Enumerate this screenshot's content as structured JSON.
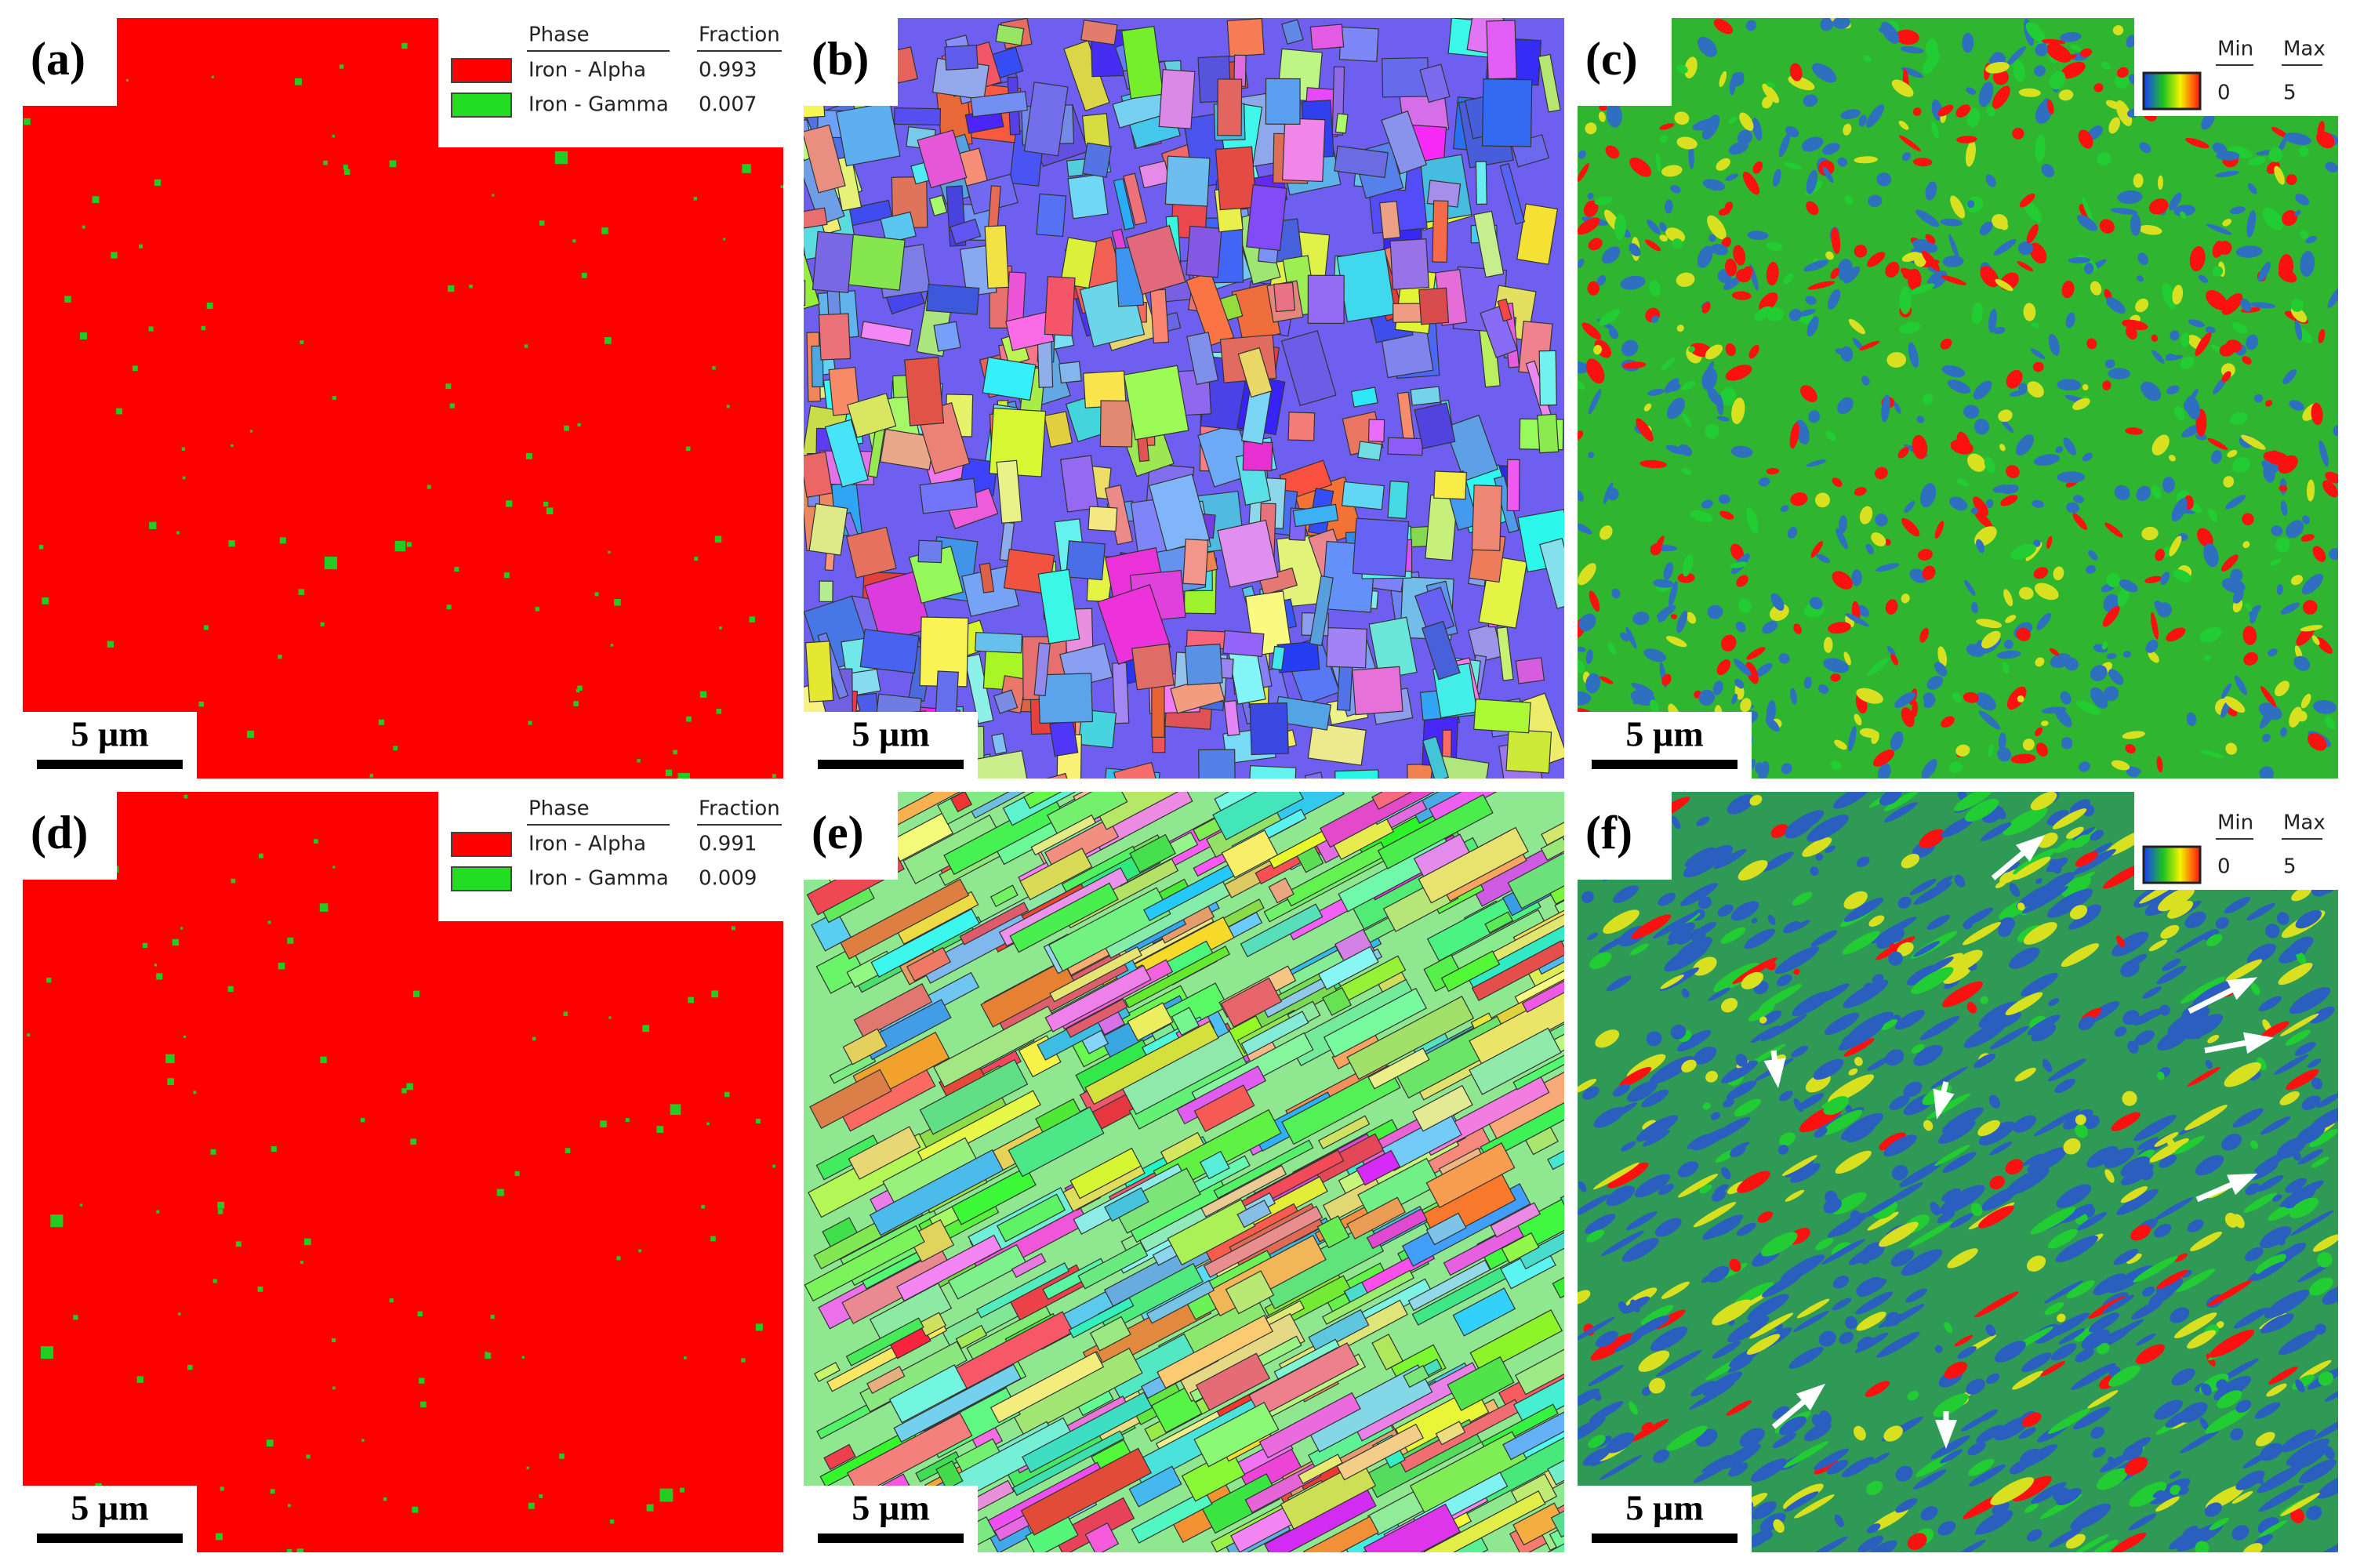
{
  "panels": [
    {
      "label": "(a)",
      "scale_bar": "5 µm",
      "legend": {
        "headers": [
          "Phase",
          "Fraction"
        ],
        "rows": [
          [
            "Iron - Alpha",
            "0.993"
          ],
          [
            "Iron - Gamma",
            "0.007"
          ]
        ]
      }
    },
    {
      "label": "(b)",
      "scale_bar": "5 µm"
    },
    {
      "label": "(c)",
      "scale_bar": "5 µm",
      "legend": {
        "headers": [
          "Min",
          "Max"
        ],
        "values": [
          "0",
          "5"
        ]
      }
    },
    {
      "label": "(d)",
      "scale_bar": "5 µm",
      "legend": {
        "headers": [
          "Phase",
          "Fraction"
        ],
        "rows": [
          [
            "Iron - Alpha",
            "0.991"
          ],
          [
            "Iron - Gamma",
            "0.009"
          ]
        ]
      }
    },
    {
      "label": "(e)",
      "scale_bar": "5 µm"
    },
    {
      "label": "(f)",
      "scale_bar": "5 µm",
      "legend": {
        "headers": [
          "Min",
          "Max"
        ],
        "values": [
          "0",
          "5"
        ]
      }
    }
  ]
}
